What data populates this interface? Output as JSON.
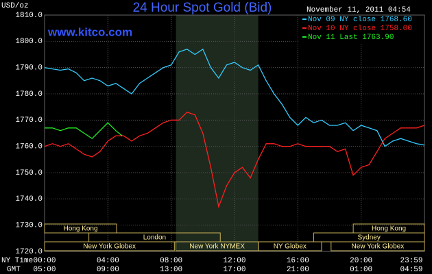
{
  "chart_data": {
    "type": "line",
    "title": "24 Hour Spot Gold (Bid)",
    "watermark": "www.kitco.com",
    "y_unit": "USD/oz",
    "timestamp": "November 11, 2011 04:54",
    "x_row_labels": [
      "NY Time",
      "GMT"
    ],
    "xlim": [
      0,
      24
    ],
    "xticks": [
      {
        "value": 0,
        "label": "00:00"
      },
      {
        "value": 4,
        "label": "04:00"
      },
      {
        "value": 8,
        "label": "08:00"
      },
      {
        "value": 12,
        "label": "12:00"
      },
      {
        "value": 16,
        "label": "16:00"
      },
      {
        "value": 20,
        "label": "20:00"
      },
      {
        "value": 24,
        "label": "23:59"
      }
    ],
    "x2ticks": [
      {
        "value": 0,
        "label": "05:00"
      },
      {
        "value": 4,
        "label": "09:00"
      },
      {
        "value": 8,
        "label": "13:00"
      },
      {
        "value": 12,
        "label": "17:00"
      },
      {
        "value": 16,
        "label": "21:00"
      },
      {
        "value": 20,
        "label": "01:00"
      },
      {
        "value": 24,
        "label": "04:59"
      }
    ],
    "ylim": [
      1720,
      1810
    ],
    "yticks": [
      {
        "value": 1720,
        "label": "1720.0"
      },
      {
        "value": 1730,
        "label": "1730.0"
      },
      {
        "value": 1740,
        "label": "1740.0"
      },
      {
        "value": 1750,
        "label": "1750.0"
      },
      {
        "value": 1760,
        "label": "1760.0"
      },
      {
        "value": 1770,
        "label": "1770.0"
      },
      {
        "value": 1780,
        "label": "1780.0"
      },
      {
        "value": 1790,
        "label": "1790.0"
      },
      {
        "value": 1800,
        "label": "1800.0"
      },
      {
        "value": 1810,
        "label": "1810.0"
      }
    ],
    "grid": true,
    "legend": "top-right",
    "series": [
      {
        "name": "Nov 09 NY close 1768.60",
        "color": "#33ccff",
        "x": [
          0,
          0.5,
          1,
          1.5,
          2,
          2.5,
          3,
          3.5,
          4,
          4.5,
          5,
          5.5,
          6,
          6.5,
          7,
          7.5,
          8,
          8.5,
          9,
          9.5,
          10,
          10.5,
          11,
          11.5,
          12,
          12.5,
          13,
          13.5,
          14,
          14.5,
          15,
          15.5,
          16,
          16.5,
          17,
          17.5,
          18,
          18.5,
          19,
          19.5,
          20,
          20.5,
          21,
          21.5,
          22,
          22.5,
          23,
          23.5,
          24
        ],
        "values": [
          1790,
          1789.5,
          1789,
          1789.5,
          1788,
          1785,
          1786,
          1785,
          1783,
          1784,
          1782,
          1780,
          1784,
          1786,
          1788,
          1790,
          1791,
          1796,
          1797,
          1795,
          1797,
          1790,
          1786,
          1791,
          1792,
          1790,
          1789,
          1791,
          1785,
          1780,
          1776,
          1771,
          1768,
          1771,
          1769,
          1770,
          1768,
          1768,
          1769,
          1766,
          1768,
          1767,
          1766,
          1760,
          1762,
          1763,
          1762,
          1761,
          1760.5
        ]
      },
      {
        "name": "Nov 10 NY close 1758.00",
        "color": "#ff2020",
        "x": [
          0,
          0.5,
          1,
          1.5,
          2,
          2.5,
          3,
          3.5,
          4,
          4.5,
          5,
          5.5,
          6,
          6.5,
          7,
          7.5,
          8,
          8.5,
          9,
          9.5,
          10,
          10.5,
          11,
          11.5,
          12,
          12.5,
          13,
          13.5,
          14,
          14.5,
          15,
          15.5,
          16,
          16.5,
          17,
          17.5,
          18,
          18.5,
          19,
          19.5,
          20,
          20.5,
          21,
          21.5,
          22,
          22.5,
          23,
          23.5,
          24
        ],
        "values": [
          1760,
          1761,
          1760,
          1761,
          1759,
          1757,
          1756,
          1758,
          1762,
          1764,
          1764,
          1762,
          1764,
          1765,
          1767,
          1769,
          1770,
          1770,
          1773,
          1772,
          1765,
          1752,
          1737,
          1745,
          1750,
          1752,
          1748,
          1755,
          1761,
          1761,
          1760,
          1760,
          1761,
          1760,
          1760,
          1760,
          1760,
          1758,
          1759,
          1749,
          1752,
          1753,
          1758,
          1763,
          1765,
          1767,
          1767,
          1767,
          1768
        ]
      },
      {
        "name": "Nov 11 Last 1763.90",
        "color": "#22ee22",
        "x": [
          0,
          0.5,
          1,
          1.5,
          2,
          2.5,
          3,
          3.5,
          4,
          4.5,
          4.9
        ],
        "values": [
          1767,
          1767,
          1766,
          1767,
          1767,
          1765,
          1763,
          1766,
          1769,
          1766,
          1764
        ]
      }
    ],
    "sessions": [
      {
        "label": "Hong Kong",
        "row": 0,
        "start": 0,
        "end": 4.55
      },
      {
        "label": "Hong Kong",
        "row": 0,
        "start": 19.5,
        "end": 24
      },
      {
        "label": "London",
        "row": 1,
        "start": 2.8,
        "end": 11.1
      },
      {
        "label": "Sydney",
        "row": 1,
        "start": 17,
        "end": 24
      },
      {
        "label": "New York Globex",
        "row": 2,
        "start": 0,
        "end": 8.2
      },
      {
        "label": "New York NYMEX",
        "row": 2,
        "start": 8.3,
        "end": 13.5,
        "shade": true
      },
      {
        "label": "NY Globex",
        "row": 2,
        "start": 13.5,
        "end": 17.5
      },
      {
        "label": "New York Globex",
        "row": 2,
        "start": 18.1,
        "end": 24
      }
    ]
  }
}
